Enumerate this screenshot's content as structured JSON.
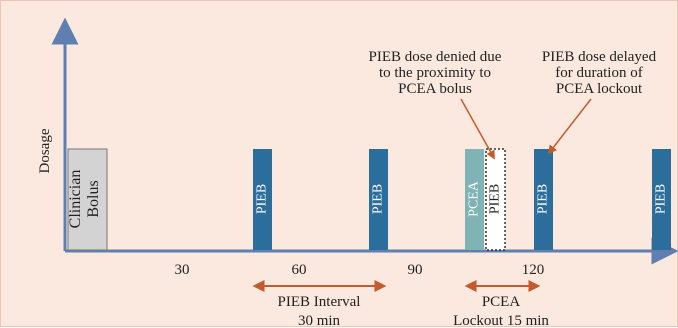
{
  "axis": {
    "y_label": "Dosage",
    "x_ticks": [
      "30",
      "60",
      "90",
      "120"
    ]
  },
  "bars": {
    "clinician": "Clinician\nBolus",
    "pieb_1": "PIEB",
    "pieb_2": "PIEB",
    "pcea": "PCEA",
    "pieb_denied": "PIEB",
    "pieb_delayed": "PIEB",
    "pieb_last": "PIEB"
  },
  "annotations": {
    "denied": [
      "PIEB dose denied due",
      "to the proximity to",
      "PCEA bolus"
    ],
    "delayed": [
      "PIEB dose delayed",
      "for duration of",
      "PCEA lockout"
    ]
  },
  "intervals": {
    "pieb": [
      "PIEB Interval",
      "30 min"
    ],
    "pcea": [
      "PCEA",
      "Lockout 15 min"
    ]
  },
  "colors": {
    "background": "#fbe8df",
    "axis": "#5f7fb0",
    "pieb": "#2b6e9c",
    "pcea": "#7fb3b6",
    "clinician": "#d3d3d3",
    "arrow": "#c55a2b"
  }
}
